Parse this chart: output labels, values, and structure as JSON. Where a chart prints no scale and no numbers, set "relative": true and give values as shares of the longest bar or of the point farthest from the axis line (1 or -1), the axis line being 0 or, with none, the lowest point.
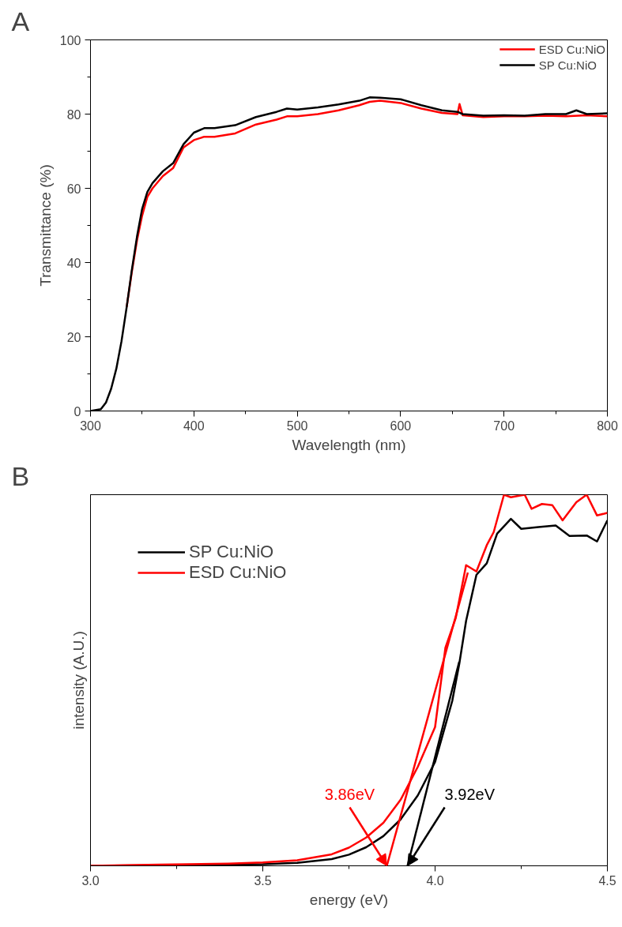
{
  "chart_data": [
    {
      "type": "line",
      "annotations": [
        "A"
      ],
      "xlabel": "Wavelength (nm)",
      "ylabel": "Transmittance (%)",
      "xlim": [
        300,
        800
      ],
      "ylim": [
        0,
        100
      ],
      "xticks": [
        300,
        400,
        500,
        600,
        700,
        800
      ],
      "yticks": [
        0,
        20,
        40,
        60,
        80,
        100
      ],
      "grid": false,
      "legend": "top right",
      "line_style": "solid",
      "marker": "none",
      "series": [
        {
          "name": "ESD Cu:NiO",
          "color": "#ff0000",
          "x": [
            335,
            340,
            345,
            350,
            355,
            360,
            370,
            380,
            390,
            400,
            410,
            420,
            440,
            460,
            480,
            490,
            500,
            520,
            540,
            560,
            570,
            580,
            600,
            620,
            640,
            655,
            657,
            660,
            680,
            700,
            720,
            740,
            760,
            780,
            800
          ],
          "values": [
            28,
            37.5,
            46,
            52.7,
            57.7,
            60,
            63.3,
            65.5,
            71,
            73,
            73.9,
            73.9,
            74.8,
            77.2,
            78.5,
            79.4,
            79.4,
            80,
            81,
            82.4,
            83.3,
            83.6,
            83,
            81.5,
            80.3,
            80,
            82.7,
            79.7,
            79.2,
            79.4,
            79.4,
            79.6,
            79.4,
            79.7,
            79.4
          ]
        },
        {
          "name": "SP Cu:NiO",
          "color": "#000000",
          "x": [
            300,
            310,
            315,
            320,
            325,
            330,
            335,
            340,
            345,
            350,
            355,
            360,
            370,
            380,
            390,
            400,
            410,
            420,
            440,
            460,
            480,
            490,
            500,
            520,
            540,
            560,
            570,
            580,
            600,
            620,
            640,
            655,
            660,
            680,
            700,
            720,
            740,
            760,
            770,
            780,
            800
          ],
          "values": [
            0,
            0.5,
            2.3,
            6,
            11.4,
            18.8,
            28,
            38,
            47,
            54.5,
            59,
            61.4,
            64.6,
            66.8,
            71.9,
            75,
            76.2,
            76.2,
            77,
            79.2,
            80.6,
            81.5,
            81.2,
            81.8,
            82.6,
            83.6,
            84.5,
            84.4,
            84,
            82.4,
            81,
            80.6,
            80,
            79.6,
            79.7,
            79.6,
            80,
            80,
            81,
            80,
            80.2
          ]
        }
      ]
    },
    {
      "type": "line",
      "relative": true,
      "annotations": [
        "B",
        {
          "text": "3.86eV",
          "x": 3.86,
          "y": 0
        },
        {
          "text": "3.92eV",
          "x": 3.92,
          "y": 0
        }
      ],
      "xlabel": "energy (eV)",
      "ylabel": "intensity (A.U.)",
      "xlim": [
        3.0,
        4.5
      ],
      "xticks": [
        {
          "value": 3.0,
          "label": "3.0"
        },
        3.5,
        {
          "value": 4.0,
          "label": "4.0"
        },
        4.5
      ],
      "tick_labels": "x",
      "grid": false,
      "legend": "top left",
      "line_style": "solid",
      "marker": "none",
      "series": [
        {
          "name": "SP Cu:NiO",
          "color": "#000000",
          "x": [
            3.0,
            3.5,
            3.6,
            3.7,
            3.75,
            3.8,
            3.85,
            3.9,
            3.95,
            4.0,
            4.05,
            4.07,
            4.09,
            4.12,
            4.15,
            4.18,
            4.22,
            4.25,
            4.3,
            4.35,
            4.39,
            4.44,
            4.47,
            4.5
          ],
          "values": [
            0,
            0.004,
            0.008,
            0.018,
            0.03,
            0.05,
            0.08,
            0.125,
            0.19,
            0.28,
            0.445,
            0.543,
            0.66,
            0.784,
            0.815,
            0.895,
            0.935,
            0.908,
            0.913,
            0.917,
            0.889,
            0.89,
            0.874,
            0.931
          ]
        },
        {
          "name": "ESD Cu:NiO",
          "color": "#ff0000",
          "x": [
            3.0,
            3.2,
            3.4,
            3.5,
            3.6,
            3.7,
            3.75,
            3.8,
            3.85,
            3.9,
            3.95,
            4.0,
            4.03,
            4.06,
            4.09,
            4.12,
            4.15,
            4.17,
            4.2,
            4.22,
            4.26,
            4.28,
            4.31,
            4.34,
            4.37,
            4.41,
            4.44,
            4.47,
            4.5
          ],
          "values": [
            0,
            0.003,
            0.006,
            0.009,
            0.015,
            0.031,
            0.049,
            0.076,
            0.116,
            0.178,
            0.267,
            0.374,
            0.588,
            0.668,
            0.81,
            0.793,
            0.864,
            0.899,
            1.0,
            0.993,
            1.0,
            0.962,
            0.975,
            0.972,
            0.931,
            0.98,
            1.0,
            0.944,
            0.951
          ]
        },
        {
          "type": "line",
          "color": "#ff0000",
          "x": [
            3.86,
            4.095
          ],
          "values": [
            0,
            0.79
          ]
        },
        {
          "type": "line",
          "color": "#000000",
          "x": [
            3.92,
            4.07
          ],
          "values": [
            0,
            0.55
          ]
        }
      ]
    }
  ]
}
